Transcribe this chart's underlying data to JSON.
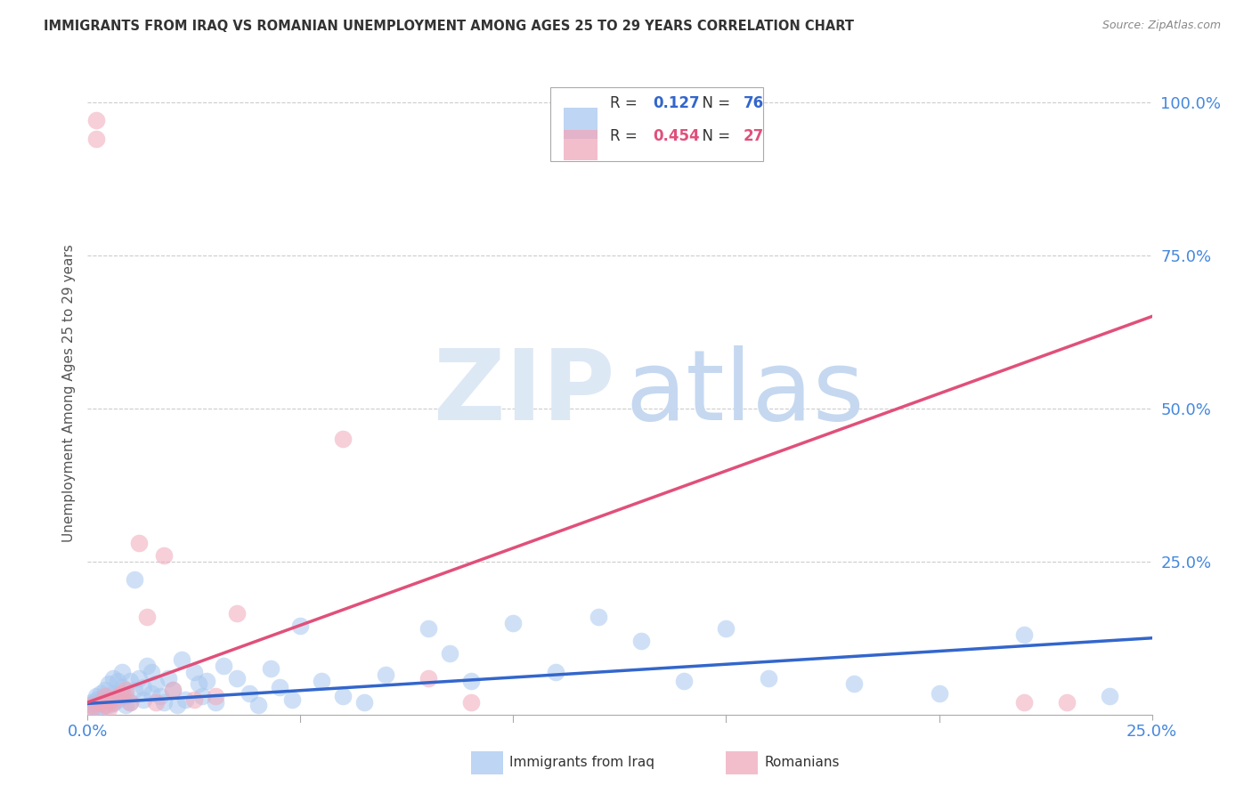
{
  "title": "IMMIGRANTS FROM IRAQ VS ROMANIAN UNEMPLOYMENT AMONG AGES 25 TO 29 YEARS CORRELATION CHART",
  "source": "Source: ZipAtlas.com",
  "ylabel": "Unemployment Among Ages 25 to 29 years",
  "xmin": 0.0,
  "xmax": 0.25,
  "ymin": 0.0,
  "ymax": 1.05,
  "legend_iraq_R": "0.127",
  "legend_iraq_N": "76",
  "legend_rom_R": "0.454",
  "legend_rom_N": "27",
  "blue_color": "#a8c8f0",
  "pink_color": "#f0a8bb",
  "blue_line_color": "#3366cc",
  "pink_line_color": "#e0507a",
  "tick_color": "#4488dd",
  "iraq_line_y0": 0.018,
  "iraq_line_y1": 0.125,
  "rom_line_y0": 0.02,
  "rom_line_y1": 0.65,
  "iraq_x": [
    0.0005,
    0.001,
    0.001,
    0.0015,
    0.002,
    0.002,
    0.002,
    0.0025,
    0.003,
    0.003,
    0.003,
    0.0035,
    0.004,
    0.004,
    0.004,
    0.005,
    0.005,
    0.005,
    0.006,
    0.006,
    0.006,
    0.007,
    0.007,
    0.008,
    0.008,
    0.009,
    0.009,
    0.01,
    0.01,
    0.011,
    0.011,
    0.012,
    0.013,
    0.013,
    0.014,
    0.015,
    0.015,
    0.016,
    0.017,
    0.018,
    0.019,
    0.02,
    0.021,
    0.022,
    0.023,
    0.025,
    0.026,
    0.027,
    0.028,
    0.03,
    0.032,
    0.035,
    0.038,
    0.04,
    0.043,
    0.045,
    0.048,
    0.05,
    0.055,
    0.06,
    0.065,
    0.07,
    0.08,
    0.085,
    0.09,
    0.1,
    0.11,
    0.12,
    0.13,
    0.14,
    0.15,
    0.16,
    0.18,
    0.2,
    0.22,
    0.24
  ],
  "iraq_y": [
    0.015,
    0.02,
    0.01,
    0.018,
    0.025,
    0.012,
    0.03,
    0.022,
    0.018,
    0.035,
    0.01,
    0.028,
    0.04,
    0.015,
    0.025,
    0.02,
    0.05,
    0.015,
    0.035,
    0.06,
    0.018,
    0.055,
    0.025,
    0.045,
    0.07,
    0.03,
    0.015,
    0.055,
    0.02,
    0.22,
    0.04,
    0.06,
    0.045,
    0.025,
    0.08,
    0.035,
    0.07,
    0.05,
    0.03,
    0.02,
    0.06,
    0.04,
    0.015,
    0.09,
    0.025,
    0.07,
    0.05,
    0.03,
    0.055,
    0.02,
    0.08,
    0.06,
    0.035,
    0.015,
    0.075,
    0.045,
    0.025,
    0.145,
    0.055,
    0.03,
    0.02,
    0.065,
    0.14,
    0.1,
    0.055,
    0.15,
    0.07,
    0.16,
    0.12,
    0.055,
    0.14,
    0.06,
    0.05,
    0.035,
    0.13,
    0.03
  ],
  "rom_x": [
    0.001,
    0.001,
    0.002,
    0.002,
    0.003,
    0.004,
    0.004,
    0.005,
    0.005,
    0.006,
    0.007,
    0.008,
    0.009,
    0.01,
    0.012,
    0.014,
    0.016,
    0.018,
    0.02,
    0.025,
    0.03,
    0.035,
    0.06,
    0.08,
    0.09,
    0.22,
    0.23
  ],
  "rom_y": [
    0.015,
    0.01,
    0.97,
    0.94,
    0.02,
    0.03,
    0.015,
    0.025,
    0.01,
    0.02,
    0.03,
    0.035,
    0.04,
    0.02,
    0.28,
    0.16,
    0.02,
    0.26,
    0.04,
    0.025,
    0.03,
    0.165,
    0.45,
    0.06,
    0.02,
    0.02,
    0.02
  ]
}
